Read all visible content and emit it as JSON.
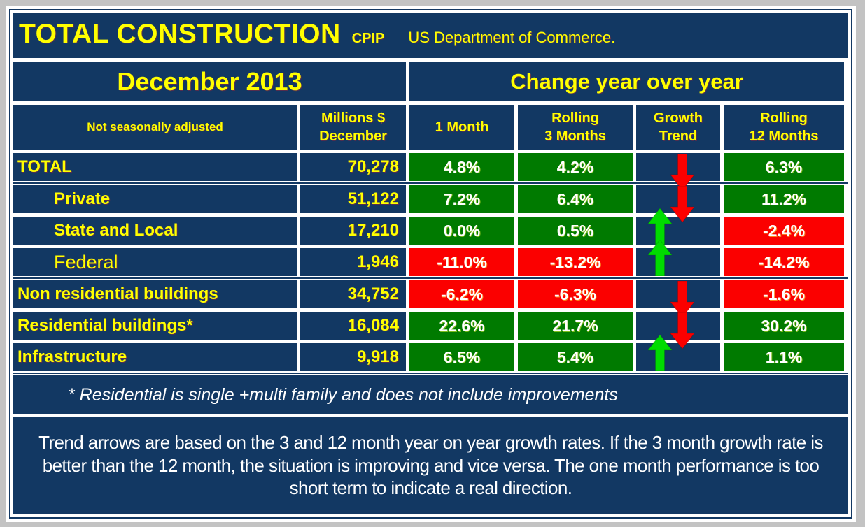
{
  "colors": {
    "navy": "#123863",
    "green": "#007a00",
    "red": "#fb0000",
    "yellow": "#ffff00",
    "arrow_up_green": "#00dc00",
    "arrow_down_red": "#fb0000",
    "frame_white": "#ffffff",
    "surround_gray": "#c3c3c3"
  },
  "header": {
    "title": "TOTAL CONSTRUCTION",
    "subtitle": "CPIP",
    "source": "US Department of Commerce."
  },
  "period_header": {
    "month": "December 2013",
    "change": "Change year over year"
  },
  "columns": {
    "label": "Not seasonally adjusted",
    "millions": "Millions $\nDecember",
    "m1": "1 Month",
    "m3": "Rolling\n3 Months",
    "trend": "Growth\nTrend",
    "m12": "Rolling\n12 Months"
  },
  "rows": [
    {
      "label": "TOTAL",
      "indent": false,
      "regular": false,
      "value": "70,278",
      "m1": "4.8%",
      "m1_color": "green",
      "m3": "4.2%",
      "m3_color": "green",
      "trend": "down",
      "m12": "6.3%",
      "m12_color": "green",
      "divider_after": true
    },
    {
      "label": "Private",
      "indent": true,
      "regular": false,
      "value": "51,122",
      "m1": "7.2%",
      "m1_color": "green",
      "m3": "6.4%",
      "m3_color": "green",
      "trend": "down",
      "m12": "11.2%",
      "m12_color": "green",
      "divider_after": false
    },
    {
      "label": "State and Local",
      "indent": true,
      "regular": false,
      "value": "17,210",
      "m1": "0.0%",
      "m1_color": "green",
      "m3": "0.5%",
      "m3_color": "green",
      "trend": "up",
      "m12": "-2.4%",
      "m12_color": "red",
      "divider_after": false
    },
    {
      "label": "Federal",
      "indent": true,
      "regular": true,
      "value": "1,946",
      "m1": "-11.0%",
      "m1_color": "red",
      "m3": "-13.2%",
      "m3_color": "red",
      "trend": "up",
      "m12": "-14.2%",
      "m12_color": "red",
      "divider_after": true
    },
    {
      "label": "Non residential buildings",
      "indent": false,
      "regular": false,
      "value": "34,752",
      "m1": "-6.2%",
      "m1_color": "red",
      "m3": "-6.3%",
      "m3_color": "red",
      "trend": "down",
      "m12": "-1.6%",
      "m12_color": "red",
      "divider_after": false
    },
    {
      "label": "Residential buildings*",
      "indent": false,
      "regular": false,
      "value": "16,084",
      "m1": "22.6%",
      "m1_color": "green",
      "m3": "21.7%",
      "m3_color": "green",
      "trend": "down",
      "m12": "30.2%",
      "m12_color": "green",
      "divider_after": false
    },
    {
      "label": "Infrastructure",
      "indent": false,
      "regular": false,
      "value": "9,918",
      "m1": "6.5%",
      "m1_color": "green",
      "m3": "5.4%",
      "m3_color": "green",
      "trend": "up",
      "m12": "1.1%",
      "m12_color": "green",
      "divider_after": true
    }
  ],
  "footnote": "* Residential is single +multi family and does not include improvements",
  "note": "Trend arrows are based on the 3 and 12 month year on year growth rates. If the 3 month growth rate is better than the 12 month, the situation is improving and vice versa. The one month performance is too short term to indicate a real direction.",
  "chart_data": {
    "type": "table",
    "title": "TOTAL CONSTRUCTION CPIP - US Department of Commerce - December 2013",
    "columns": [
      "Not seasonally adjusted",
      "Millions $ December",
      "1 Month",
      "Rolling 3 Months",
      "Growth Trend",
      "Rolling 12 Months"
    ],
    "rows": [
      {
        "category": "TOTAL",
        "millions_dec": 70278,
        "pct_1m": 4.8,
        "pct_3m_rolling": 4.2,
        "growth_trend": "down",
        "pct_12m_rolling": 6.3
      },
      {
        "category": "Private",
        "millions_dec": 51122,
        "pct_1m": 7.2,
        "pct_3m_rolling": 6.4,
        "growth_trend": "down",
        "pct_12m_rolling": 11.2
      },
      {
        "category": "State and Local",
        "millions_dec": 17210,
        "pct_1m": 0.0,
        "pct_3m_rolling": 0.5,
        "growth_trend": "up",
        "pct_12m_rolling": -2.4
      },
      {
        "category": "Federal",
        "millions_dec": 1946,
        "pct_1m": -11.0,
        "pct_3m_rolling": -13.2,
        "growth_trend": "up",
        "pct_12m_rolling": -14.2
      },
      {
        "category": "Non residential buildings",
        "millions_dec": 34752,
        "pct_1m": -6.2,
        "pct_3m_rolling": -6.3,
        "growth_trend": "down",
        "pct_12m_rolling": -1.6
      },
      {
        "category": "Residential buildings*",
        "millions_dec": 16084,
        "pct_1m": 22.6,
        "pct_3m_rolling": 21.7,
        "growth_trend": "down",
        "pct_12m_rolling": 30.2
      },
      {
        "category": "Infrastructure",
        "millions_dec": 9918,
        "pct_1m": 6.5,
        "pct_3m_rolling": 5.4,
        "growth_trend": "up",
        "pct_12m_rolling": 1.1
      }
    ],
    "legend": {
      "green_cell": "positive / favorable growth",
      "red_cell": "negative growth",
      "down_arrow": "3 month rolling worse than 12 month (deteriorating)",
      "up_arrow": "3 month rolling better than 12 month (improving)"
    }
  }
}
